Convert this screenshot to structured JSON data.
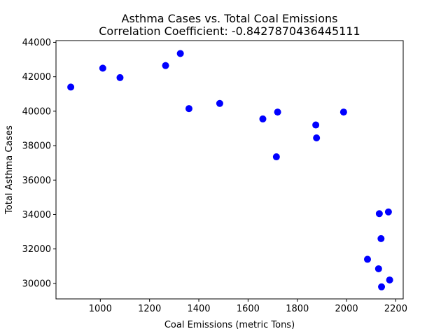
{
  "chart_data": {
    "type": "scatter",
    "title": "Asthma Cases vs. Total Coal Emissions",
    "subtitle": "Correlation Coefficient: -0.8427870436445111",
    "xlabel": "Coal Emissions (metric Tons)",
    "ylabel": "Total Asthma Cases",
    "xlim": [
      820,
      2230
    ],
    "ylim": [
      29100,
      44100
    ],
    "xticks": [
      1000,
      1200,
      1400,
      1600,
      1800,
      2000,
      2200
    ],
    "yticks": [
      30000,
      32000,
      34000,
      36000,
      38000,
      40000,
      42000,
      44000
    ],
    "grid": false,
    "marker_color": "#0000ff",
    "points": [
      {
        "x": 880,
        "y": 41400
      },
      {
        "x": 1010,
        "y": 42500
      },
      {
        "x": 1080,
        "y": 41950
      },
      {
        "x": 1265,
        "y": 42650
      },
      {
        "x": 1325,
        "y": 43350
      },
      {
        "x": 1360,
        "y": 40150
      },
      {
        "x": 1485,
        "y": 40450
      },
      {
        "x": 1660,
        "y": 39550
      },
      {
        "x": 1715,
        "y": 37350
      },
      {
        "x": 1720,
        "y": 39950
      },
      {
        "x": 1875,
        "y": 39200
      },
      {
        "x": 1878,
        "y": 38450
      },
      {
        "x": 1988,
        "y": 39950
      },
      {
        "x": 2085,
        "y": 31400
      },
      {
        "x": 2130,
        "y": 30850
      },
      {
        "x": 2133,
        "y": 34050
      },
      {
        "x": 2140,
        "y": 32600
      },
      {
        "x": 2142,
        "y": 29800
      },
      {
        "x": 2170,
        "y": 34150
      },
      {
        "x": 2175,
        "y": 30200
      }
    ]
  }
}
